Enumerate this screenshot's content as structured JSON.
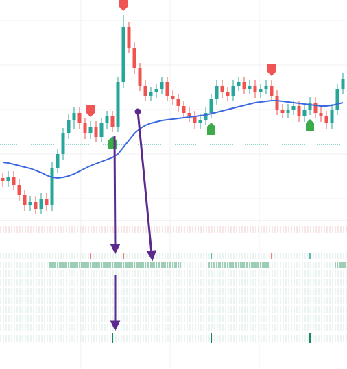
{
  "chart_data": {
    "type": "candlestick",
    "ylim": [
      0,
      320
    ],
    "grid": true,
    "up_color": "#26a69a",
    "down_color": "#ef5350",
    "ma_color": "#3a66e0",
    "open": [
      60,
      55,
      62,
      50,
      35,
      20,
      25,
      15,
      30,
      20,
      75,
      95,
      125,
      145,
      155,
      140,
      125,
      135,
      120,
      140,
      150,
      135,
      200,
      280,
      250,
      220,
      195,
      180,
      185,
      190,
      200,
      180,
      175,
      165,
      155,
      150,
      140,
      145,
      155,
      175,
      195,
      185,
      180,
      195,
      200,
      190,
      195,
      185,
      190,
      195,
      180,
      160,
      155,
      160,
      165,
      150,
      160,
      170,
      155,
      150,
      140,
      160,
      190
    ],
    "high": [
      68,
      70,
      70,
      58,
      43,
      33,
      33,
      38,
      38,
      83,
      103,
      133,
      153,
      163,
      163,
      148,
      143,
      143,
      148,
      158,
      158,
      208,
      298,
      288,
      258,
      228,
      203,
      193,
      198,
      208,
      208,
      188,
      183,
      173,
      163,
      158,
      153,
      163,
      183,
      203,
      203,
      193,
      203,
      208,
      208,
      203,
      203,
      198,
      203,
      203,
      188,
      168,
      168,
      173,
      173,
      168,
      178,
      178,
      163,
      158,
      168,
      198,
      213
    ],
    "low": [
      47,
      47,
      42,
      27,
      12,
      12,
      7,
      7,
      12,
      12,
      67,
      87,
      117,
      132,
      132,
      117,
      117,
      112,
      112,
      132,
      127,
      127,
      192,
      242,
      212,
      187,
      172,
      172,
      177,
      182,
      172,
      167,
      157,
      147,
      142,
      132,
      132,
      137,
      147,
      167,
      177,
      172,
      172,
      187,
      182,
      182,
      177,
      177,
      182,
      172,
      152,
      147,
      147,
      152,
      142,
      142,
      152,
      147,
      142,
      132,
      132,
      152,
      182
    ],
    "close": [
      55,
      62,
      50,
      35,
      20,
      25,
      15,
      30,
      20,
      75,
      95,
      125,
      145,
      155,
      140,
      125,
      135,
      120,
      140,
      150,
      135,
      200,
      280,
      250,
      220,
      195,
      180,
      185,
      190,
      200,
      180,
      175,
      165,
      155,
      150,
      140,
      145,
      155,
      175,
      195,
      185,
      180,
      195,
      200,
      190,
      195,
      185,
      190,
      195,
      180,
      160,
      155,
      160,
      165,
      150,
      160,
      170,
      155,
      150,
      140,
      160,
      190,
      205
    ],
    "ma": [
      83,
      82,
      80,
      78,
      76,
      74,
      71,
      68,
      64,
      61,
      60,
      61,
      63,
      66,
      70,
      74,
      78,
      81,
      84,
      87,
      90,
      95,
      105,
      115,
      125,
      132,
      137,
      140,
      142,
      144,
      145,
      146,
      147,
      148,
      149,
      150,
      151,
      152,
      154,
      156,
      158,
      160,
      162,
      164,
      166,
      168,
      170,
      171,
      172,
      173,
      173,
      172,
      171,
      170,
      169,
      168,
      167,
      166,
      165,
      165,
      166,
      168,
      170
    ],
    "reference_line": 109,
    "sell_signals": [
      16,
      22,
      49
    ],
    "buy_signals": [
      20,
      38,
      56
    ],
    "strips": [
      {
        "color": "#ef5350",
        "indices": [
          16,
          22,
          49
        ]
      },
      {
        "color": "#26a69a",
        "indices": [
          38,
          56
        ]
      },
      {
        "color": "#7fbf9f",
        "indices": [
          9,
          10,
          11,
          12,
          13,
          14,
          15,
          16,
          17,
          18,
          19,
          20,
          21,
          22,
          23,
          24,
          25,
          26,
          27,
          28,
          29,
          30,
          31,
          32,
          38,
          39,
          40,
          41,
          42,
          43,
          44,
          45,
          46,
          47,
          48,
          61,
          62
        ]
      },
      {
        "color": "#138a5a",
        "indices": [
          20,
          38,
          56
        ]
      }
    ]
  }
}
